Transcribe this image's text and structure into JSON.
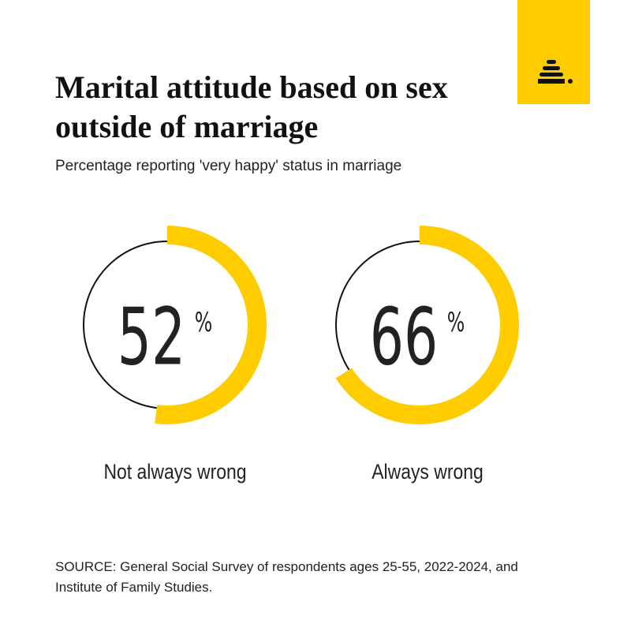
{
  "chart_data": {
    "type": "radial",
    "title": "Marital attitude based on sex outside of marriage",
    "subtitle": "Percentage reporting 'very happy' status in marriage",
    "categories": [
      "Not always wrong",
      "Always wrong"
    ],
    "values": [
      52,
      66
    ],
    "unit": "%",
    "color": "#ffcc00",
    "source": "SOURCE: General Social Survey of respondents ages 25-55, 2022-2024, and Institute of Family Studies."
  }
}
